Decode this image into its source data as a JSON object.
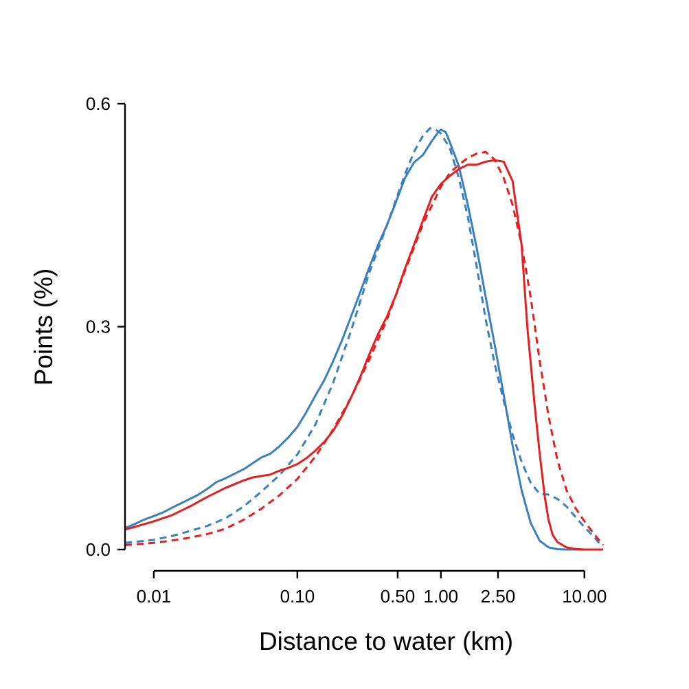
{
  "chart_data": {
    "type": "line",
    "title": "",
    "xlabel": "Distance to water (km)",
    "ylabel": "Points (%)",
    "x_scale": "log",
    "xlim": [
      0.0063,
      13.5
    ],
    "ylim": [
      0,
      0.6
    ],
    "x_ticks": [
      {
        "value": 0.01,
        "label": "0.01"
      },
      {
        "value": 0.1,
        "label": "0.10"
      },
      {
        "value": 0.5,
        "label": "0.50"
      },
      {
        "value": 1.0,
        "label": "1.00"
      },
      {
        "value": 2.5,
        "label": "2.50"
      },
      {
        "value": 10.0,
        "label": "10.00"
      }
    ],
    "y_ticks": [
      {
        "value": 0.0,
        "label": "0.0"
      },
      {
        "value": 0.3,
        "label": "0.3"
      },
      {
        "value": 0.6,
        "label": "0.6"
      }
    ],
    "grid": false,
    "series": [
      {
        "color": "#3a7fbf",
        "dash": "solid",
        "points": [
          [
            0.0063,
            0.029
          ],
          [
            0.0075,
            0.035
          ],
          [
            0.0085,
            0.04
          ],
          [
            0.01,
            0.045
          ],
          [
            0.0116,
            0.05
          ],
          [
            0.0133,
            0.056
          ],
          [
            0.0154,
            0.062
          ],
          [
            0.0178,
            0.068
          ],
          [
            0.0205,
            0.074
          ],
          [
            0.0237,
            0.082
          ],
          [
            0.0274,
            0.091
          ],
          [
            0.0316,
            0.096
          ],
          [
            0.0365,
            0.102
          ],
          [
            0.0422,
            0.108
          ],
          [
            0.0487,
            0.116
          ],
          [
            0.0562,
            0.124
          ],
          [
            0.0649,
            0.129
          ],
          [
            0.075,
            0.139
          ],
          [
            0.0866,
            0.151
          ],
          [
            0.1,
            0.165
          ],
          [
            0.1155,
            0.185
          ],
          [
            0.1334,
            0.207
          ],
          [
            0.154,
            0.228
          ],
          [
            0.178,
            0.254
          ],
          [
            0.205,
            0.282
          ],
          [
            0.237,
            0.314
          ],
          [
            0.274,
            0.346
          ],
          [
            0.316,
            0.379
          ],
          [
            0.365,
            0.41
          ],
          [
            0.422,
            0.437
          ],
          [
            0.487,
            0.468
          ],
          [
            0.562,
            0.5
          ],
          [
            0.649,
            0.521
          ],
          [
            0.75,
            0.531
          ],
          [
            0.866,
            0.55
          ],
          [
            0.96,
            0.562
          ],
          [
            1.0,
            0.565
          ],
          [
            1.08,
            0.562
          ],
          [
            1.155,
            0.548
          ],
          [
            1.334,
            0.516
          ],
          [
            1.54,
            0.464
          ],
          [
            1.78,
            0.405
          ],
          [
            2.05,
            0.34
          ],
          [
            2.37,
            0.276
          ],
          [
            2.74,
            0.208
          ],
          [
            3.16,
            0.14
          ],
          [
            3.65,
            0.08
          ],
          [
            4.22,
            0.036
          ],
          [
            4.87,
            0.012
          ],
          [
            5.62,
            0.003
          ],
          [
            6.49,
            0.0005
          ],
          [
            7.5,
            0.0
          ],
          [
            13.5,
            0.0
          ]
        ]
      },
      {
        "color": "#3a7fbf",
        "dash": "dashed",
        "points": [
          [
            0.0063,
            0.009
          ],
          [
            0.01,
            0.013
          ],
          [
            0.0133,
            0.018
          ],
          [
            0.0178,
            0.025
          ],
          [
            0.0237,
            0.032
          ],
          [
            0.0316,
            0.042
          ],
          [
            0.0422,
            0.058
          ],
          [
            0.0562,
            0.078
          ],
          [
            0.075,
            0.1
          ],
          [
            0.1,
            0.128
          ],
          [
            0.1334,
            0.168
          ],
          [
            0.178,
            0.225
          ],
          [
            0.237,
            0.295
          ],
          [
            0.316,
            0.372
          ],
          [
            0.422,
            0.437
          ],
          [
            0.562,
            0.505
          ],
          [
            0.649,
            0.535
          ],
          [
            0.75,
            0.557
          ],
          [
            0.84,
            0.567
          ],
          [
            0.925,
            0.565
          ],
          [
            1.0,
            0.56
          ],
          [
            1.155,
            0.54
          ],
          [
            1.334,
            0.5
          ],
          [
            1.54,
            0.448
          ],
          [
            1.78,
            0.38
          ],
          [
            2.05,
            0.31
          ],
          [
            2.37,
            0.25
          ],
          [
            2.74,
            0.2
          ],
          [
            3.16,
            0.155
          ],
          [
            3.65,
            0.118
          ],
          [
            4.22,
            0.09
          ],
          [
            4.87,
            0.075
          ],
          [
            5.62,
            0.074
          ],
          [
            6.49,
            0.068
          ],
          [
            7.5,
            0.058
          ],
          [
            8.66,
            0.044
          ],
          [
            10.0,
            0.03
          ],
          [
            11.55,
            0.018
          ],
          [
            12.5,
            0.01
          ],
          [
            13.5,
            0.005
          ]
        ]
      },
      {
        "color": "#e3201f",
        "dash": "solid",
        "points": [
          [
            0.0063,
            0.027
          ],
          [
            0.0075,
            0.031
          ],
          [
            0.0085,
            0.034
          ],
          [
            0.01,
            0.038
          ],
          [
            0.0133,
            0.046
          ],
          [
            0.0178,
            0.058
          ],
          [
            0.0237,
            0.071
          ],
          [
            0.0316,
            0.083
          ],
          [
            0.0422,
            0.093
          ],
          [
            0.0487,
            0.097
          ],
          [
            0.0562,
            0.099
          ],
          [
            0.0649,
            0.101
          ],
          [
            0.075,
            0.106
          ],
          [
            0.0866,
            0.11
          ],
          [
            0.1,
            0.115
          ],
          [
            0.1155,
            0.123
          ],
          [
            0.1334,
            0.133
          ],
          [
            0.154,
            0.145
          ],
          [
            0.178,
            0.16
          ],
          [
            0.205,
            0.18
          ],
          [
            0.237,
            0.205
          ],
          [
            0.274,
            0.232
          ],
          [
            0.316,
            0.262
          ],
          [
            0.365,
            0.29
          ],
          [
            0.422,
            0.314
          ],
          [
            0.487,
            0.343
          ],
          [
            0.562,
            0.378
          ],
          [
            0.649,
            0.41
          ],
          [
            0.75,
            0.443
          ],
          [
            0.866,
            0.475
          ],
          [
            1.0,
            0.492
          ],
          [
            1.155,
            0.503
          ],
          [
            1.334,
            0.512
          ],
          [
            1.54,
            0.518
          ],
          [
            1.78,
            0.518
          ],
          [
            2.05,
            0.522
          ],
          [
            2.37,
            0.524
          ],
          [
            2.74,
            0.522
          ],
          [
            3.16,
            0.496
          ],
          [
            3.65,
            0.41
          ],
          [
            4.0,
            0.3
          ],
          [
            4.47,
            0.2
          ],
          [
            4.87,
            0.13
          ],
          [
            5.3,
            0.07
          ],
          [
            5.62,
            0.04
          ],
          [
            6.0,
            0.02
          ],
          [
            6.49,
            0.01
          ],
          [
            7.5,
            0.003
          ],
          [
            8.66,
            0.0008
          ],
          [
            10.0,
            0.0
          ],
          [
            13.5,
            0.0
          ]
        ]
      },
      {
        "color": "#e3201f",
        "dash": "dashed",
        "points": [
          [
            0.0063,
            0.006
          ],
          [
            0.01,
            0.009
          ],
          [
            0.0133,
            0.012
          ],
          [
            0.0178,
            0.016
          ],
          [
            0.0237,
            0.021
          ],
          [
            0.0316,
            0.028
          ],
          [
            0.0422,
            0.04
          ],
          [
            0.0562,
            0.055
          ],
          [
            0.075,
            0.073
          ],
          [
            0.1,
            0.095
          ],
          [
            0.1334,
            0.125
          ],
          [
            0.178,
            0.162
          ],
          [
            0.237,
            0.205
          ],
          [
            0.316,
            0.255
          ],
          [
            0.422,
            0.31
          ],
          [
            0.562,
            0.375
          ],
          [
            0.75,
            0.438
          ],
          [
            1.0,
            0.488
          ],
          [
            1.155,
            0.507
          ],
          [
            1.334,
            0.518
          ],
          [
            1.54,
            0.527
          ],
          [
            1.78,
            0.533
          ],
          [
            2.05,
            0.535
          ],
          [
            2.37,
            0.525
          ],
          [
            2.74,
            0.5
          ],
          [
            3.16,
            0.464
          ],
          [
            3.65,
            0.41
          ],
          [
            4.22,
            0.34
          ],
          [
            4.87,
            0.255
          ],
          [
            5.62,
            0.18
          ],
          [
            6.49,
            0.12
          ],
          [
            7.5,
            0.08
          ],
          [
            8.66,
            0.056
          ],
          [
            10.0,
            0.038
          ],
          [
            11.55,
            0.022
          ],
          [
            12.5,
            0.014
          ],
          [
            13.5,
            0.006
          ]
        ]
      }
    ]
  }
}
